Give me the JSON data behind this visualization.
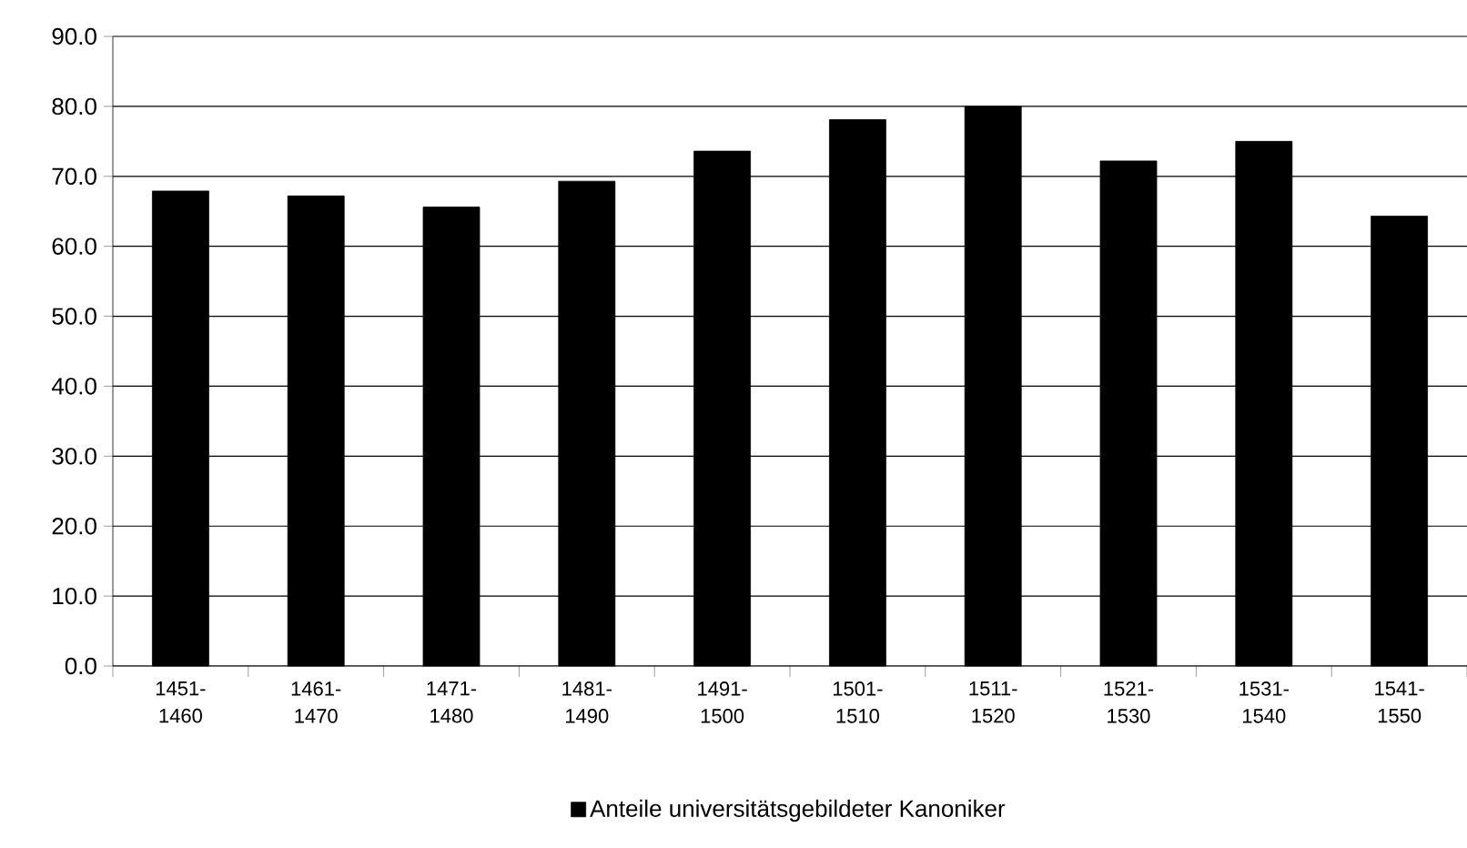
{
  "chart_data": {
    "type": "bar",
    "categories": [
      "1451-1460",
      "1461-1470",
      "1471-1480",
      "1481-1490",
      "1491-1500",
      "1501-1510",
      "1511-1520",
      "1521-1530",
      "1531-1540",
      "1541-1550"
    ],
    "series": [
      {
        "name": "Anteile universitätsgebildeter Kanoniker",
        "color": "#000000",
        "values": [
          67.9,
          67.2,
          65.6,
          69.3,
          73.6,
          78.1,
          80.0,
          72.2,
          75.0,
          64.3
        ]
      }
    ],
    "ylim": [
      0,
      90
    ],
    "yticks": [
      {
        "value": 0,
        "label": "0.0"
      },
      {
        "value": 10,
        "label": "10.0"
      },
      {
        "value": 20,
        "label": "20.0"
      },
      {
        "value": 30,
        "label": "30.0"
      },
      {
        "value": 40,
        "label": "40.0"
      },
      {
        "value": 50,
        "label": "50.0"
      },
      {
        "value": 60,
        "label": "60.0"
      },
      {
        "value": 70,
        "label": "70.0"
      },
      {
        "value": 80,
        "label": "80.0"
      },
      {
        "value": 90,
        "label": "90.0"
      }
    ],
    "grid": "y",
    "legend": "bottom"
  }
}
